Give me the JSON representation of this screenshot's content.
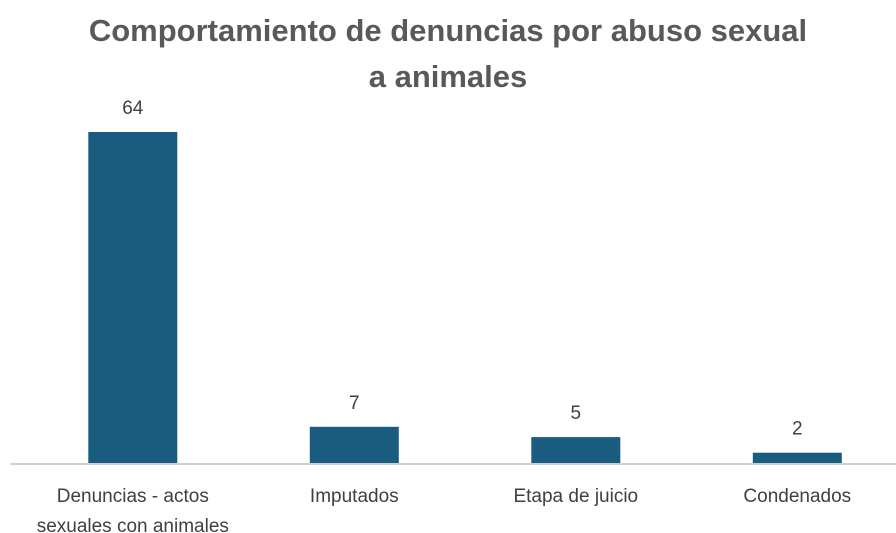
{
  "chart_data": {
    "type": "bar",
    "title_lines": [
      "Comportamiento de denuncias por abuso sexual",
      "a animales"
    ],
    "categories": [
      [
        "Denuncias - actos",
        "sexuales con animales"
      ],
      [
        "Imputados"
      ],
      [
        "Etapa de juicio"
      ],
      [
        "Condenados"
      ]
    ],
    "values": [
      64,
      7,
      5,
      2
    ],
    "data_labels": [
      "64",
      "7",
      "5",
      "2"
    ],
    "bar_color": "#1a5c80",
    "grid": false,
    "legend": "none"
  }
}
